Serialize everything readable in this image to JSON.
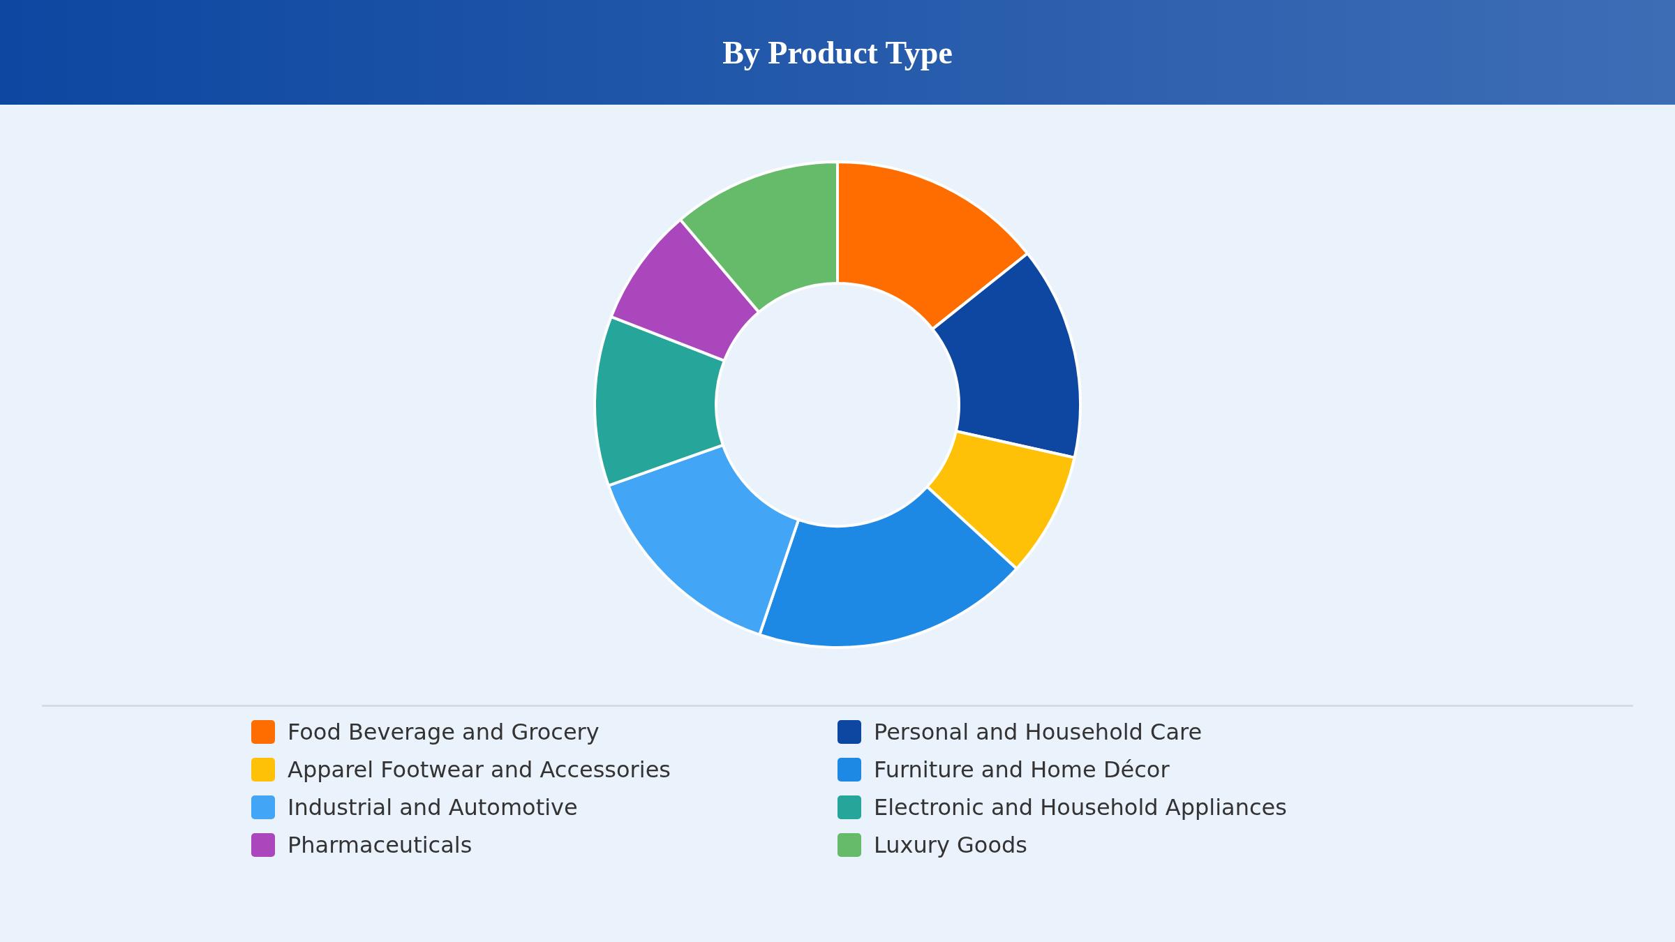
{
  "chart_data": {
    "type": "donut",
    "title": "By Product Type",
    "categories": [
      "Food Beverage and Grocery",
      "Personal and Household Care",
      "Apparel Footwear and Accessories",
      "Furniture and Home Décor",
      "Industrial and Automotive",
      "Electronic and Household Appliances",
      "Pharmaceuticals",
      "Luxury Goods"
    ],
    "values": [
      14.3,
      14.2,
      8.3,
      18.4,
      14.4,
      11.3,
      7.9,
      11.2
    ],
    "colors": [
      "#ff6d00",
      "#0d47a1",
      "#ffc107",
      "#1e88e5",
      "#42a5f5",
      "#26a69a",
      "#ab47bc",
      "#66bb6a"
    ],
    "legend": "bottom"
  }
}
